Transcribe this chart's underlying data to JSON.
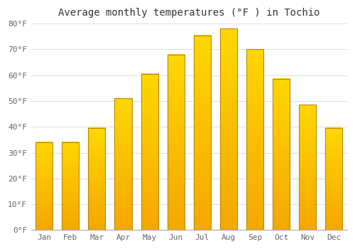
{
  "title": "Average monthly temperatures (°F ) in Tochio",
  "months": [
    "Jan",
    "Feb",
    "Mar",
    "Apr",
    "May",
    "Jun",
    "Jul",
    "Aug",
    "Sep",
    "Oct",
    "Nov",
    "Dec"
  ],
  "values": [
    34,
    34,
    39.5,
    51,
    60.5,
    68,
    75.5,
    78,
    70,
    58.5,
    48.5,
    39.5
  ],
  "bar_color_bottom": "#F5A800",
  "bar_color_top": "#FFD700",
  "bar_edge_color": "#B8860B",
  "background_color": "#FFFFFF",
  "plot_bg_color": "#FFFFFF",
  "grid_color": "#DDDDDD",
  "ylim": [
    0,
    80
  ],
  "yticks": [
    0,
    10,
    20,
    30,
    40,
    50,
    60,
    70,
    80
  ],
  "ytick_labels": [
    "0°F",
    "10°F",
    "20°F",
    "30°F",
    "40°F",
    "50°F",
    "60°F",
    "70°F",
    "80°F"
  ],
  "title_fontsize": 10,
  "tick_fontsize": 8,
  "bar_width": 0.65,
  "bar_linewidth": 0.8,
  "gradient_steps": 100
}
